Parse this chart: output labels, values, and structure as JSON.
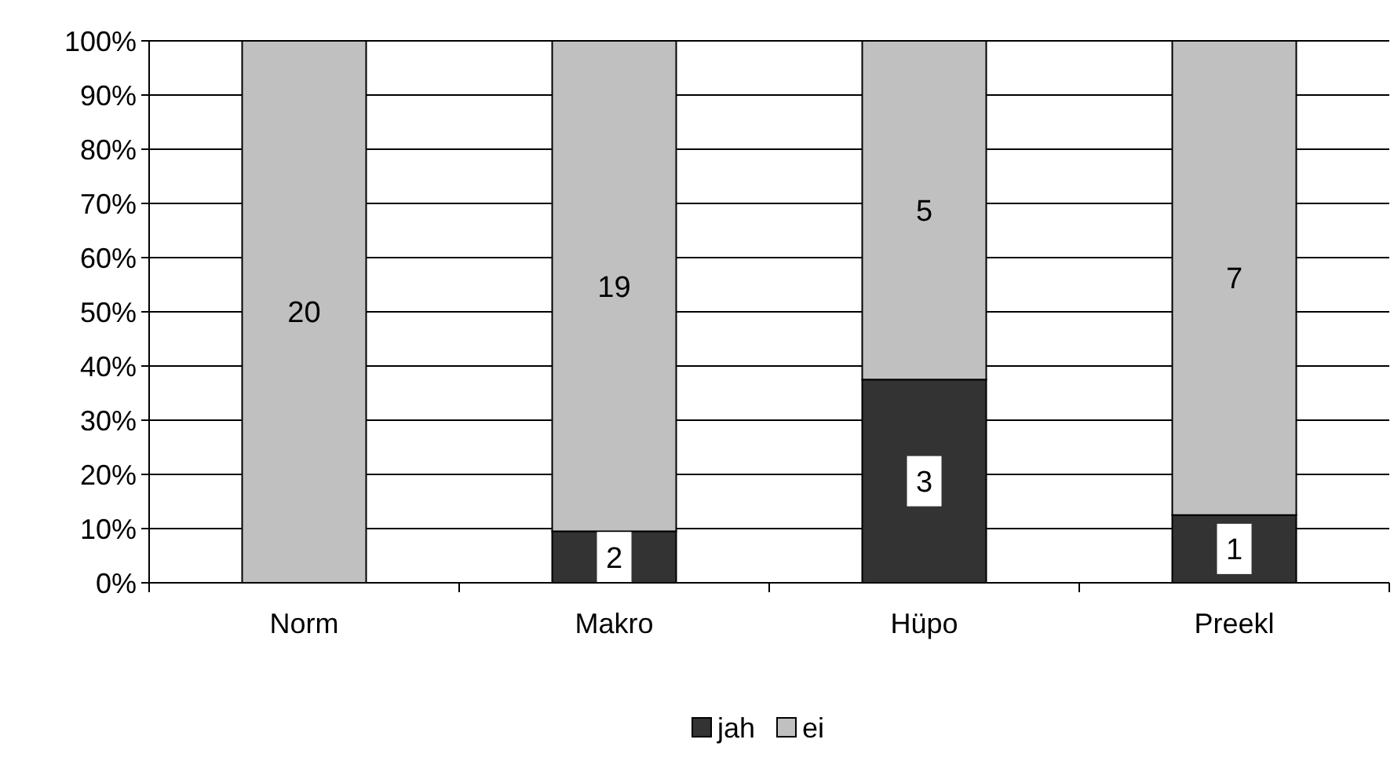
{
  "chart_data": {
    "type": "bar",
    "stacked": true,
    "categories": [
      "Norm",
      "Makro",
      "Hüpo",
      "Preekl"
    ],
    "series": [
      {
        "name": "jah",
        "color": "#333333",
        "values": [
          0,
          9.5,
          37.5,
          12.5
        ]
      },
      {
        "name": "ei",
        "color": "#c0c0c0",
        "values": [
          100,
          90.5,
          62.5,
          87.5
        ]
      }
    ],
    "annotations": [
      {
        "text": "2",
        "x": "Makro",
        "y": 9.5
      },
      {
        "text": "3",
        "x": "Hüpo",
        "y": 37.5
      },
      {
        "text": "1",
        "x": "Preekl",
        "y": 12.5
      },
      "20",
      "19",
      "5",
      "7"
    ],
    "ylim": [
      0,
      100
    ],
    "yticks": [
      {
        "value": 0,
        "label": "0%"
      },
      {
        "value": 10,
        "label": "10%"
      },
      {
        "value": 20,
        "label": "20%"
      },
      {
        "value": 30,
        "label": "30%"
      },
      {
        "value": 40,
        "label": "40%"
      },
      {
        "value": 50,
        "label": "50%"
      },
      {
        "value": 60,
        "label": "60%"
      },
      {
        "value": 70,
        "label": "70%"
      },
      {
        "value": 80,
        "label": "80%"
      },
      {
        "value": 90,
        "label": "90%"
      },
      {
        "value": 100,
        "label": "100%"
      }
    ],
    "grid": "y",
    "legend": "bottom"
  }
}
